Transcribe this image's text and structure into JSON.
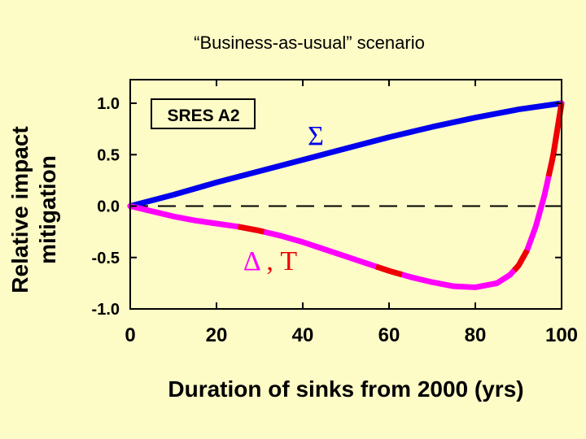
{
  "title": "“Business-as-usual” scenario",
  "chart_data": {
    "type": "line",
    "xlabel": "Duration of sinks from 2000 (yrs)",
    "ylabel_lines": [
      "Relative impact",
      "mitigation"
    ],
    "xlim": [
      0,
      100
    ],
    "ylim": [
      -1.0,
      1.0
    ],
    "xticks": [
      0,
      20,
      40,
      60,
      80,
      100
    ],
    "yticks": [
      1.0,
      0.5,
      0.0,
      -0.5,
      -1.0
    ],
    "ytick_labels": [
      "1.0",
      "0.5",
      "0.0",
      "-0.5",
      "-1.0"
    ],
    "annotation": "SRES A2",
    "reference_line": {
      "y": 0,
      "style": "dashed"
    },
    "series": [
      {
        "name": "Σ",
        "color": "#0000ee",
        "x": [
          0,
          10,
          20,
          30,
          40,
          50,
          60,
          70,
          80,
          90,
          100
        ],
        "y": [
          0,
          0.11,
          0.23,
          0.34,
          0.45,
          0.56,
          0.67,
          0.77,
          0.86,
          0.94,
          1.0
        ]
      },
      {
        "name": "Δ, T",
        "color": "#ff00ff",
        "accent_color": "#ee0000",
        "x": [
          0,
          5,
          10,
          15,
          20,
          25,
          30,
          35,
          40,
          45,
          50,
          55,
          60,
          65,
          70,
          75,
          80,
          85,
          88,
          90,
          92,
          94,
          96,
          98,
          100
        ],
        "y": [
          0,
          -0.05,
          -0.1,
          -0.14,
          -0.17,
          -0.2,
          -0.24,
          -0.29,
          -0.35,
          -0.42,
          -0.49,
          -0.56,
          -0.63,
          -0.69,
          -0.74,
          -0.78,
          -0.79,
          -0.75,
          -0.67,
          -0.58,
          -0.43,
          -0.2,
          0.1,
          0.48,
          1.0
        ],
        "accent_ranges": [
          [
            25,
            31
          ],
          [
            57,
            63
          ],
          [
            89,
            92
          ],
          [
            97,
            100
          ]
        ]
      }
    ]
  }
}
